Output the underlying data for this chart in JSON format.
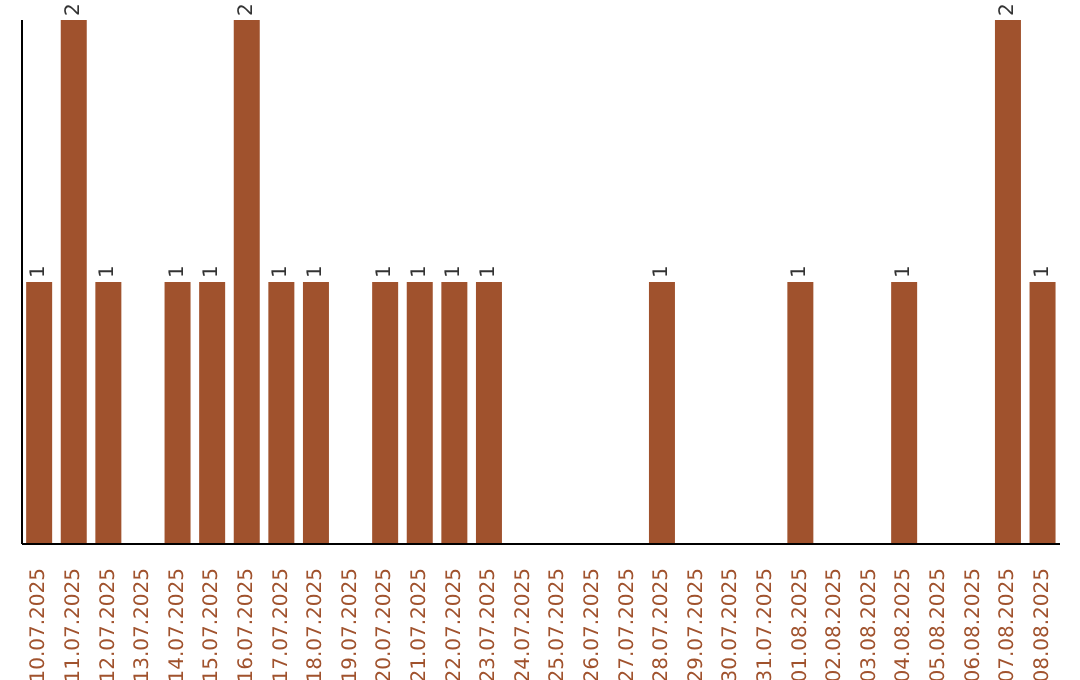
{
  "chart_data": {
    "type": "bar",
    "categories": [
      "10.07.2025",
      "11.07.2025",
      "12.07.2025",
      "13.07.2025",
      "14.07.2025",
      "15.07.2025",
      "16.07.2025",
      "17.07.2025",
      "18.07.2025",
      "19.07.2025",
      "20.07.2025",
      "21.07.2025",
      "22.07.2025",
      "23.07.2025",
      "24.07.2025",
      "25.07.2025",
      "26.07.2025",
      "27.07.2025",
      "28.07.2025",
      "29.07.2025",
      "30.07.2025",
      "31.07.2025",
      "01.08.2025",
      "02.08.2025",
      "03.08.2025",
      "04.08.2025",
      "05.08.2025",
      "06.08.2025",
      "07.08.2025",
      "08.08.2025"
    ],
    "values": [
      1,
      2,
      1,
      0,
      1,
      1,
      2,
      1,
      1,
      0,
      1,
      1,
      1,
      1,
      0,
      0,
      0,
      0,
      1,
      0,
      0,
      0,
      1,
      0,
      0,
      1,
      0,
      0,
      2,
      1
    ],
    "value_labels": [
      "1",
      "2",
      "1",
      null,
      "1",
      "1",
      "2",
      "1",
      "1",
      null,
      "1",
      "1",
      "1",
      "1",
      null,
      null,
      null,
      null,
      "1",
      null,
      null,
      null,
      "1",
      null,
      null,
      "1",
      null,
      null,
      "2",
      "1"
    ],
    "color": "#a0522d",
    "ylim": [
      0,
      2
    ],
    "tick_labels": "x",
    "grid": false,
    "legend": false
  }
}
